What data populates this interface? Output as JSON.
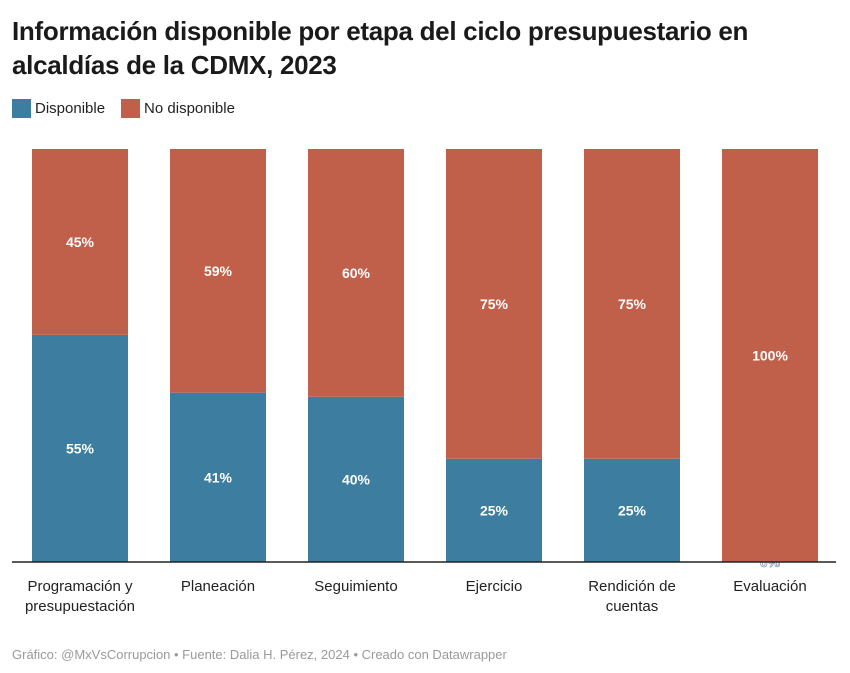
{
  "title": "Información disponible por etapa del ciclo presupuestario en alcaldías de la CDMX, 2023",
  "footer": "Gráfico: @MxVsCorrupcion • Fuente: Dalia H. Pérez, 2024 • Creado con Datawrapper",
  "chart_data": {
    "type": "bar",
    "stacked": true,
    "orientation": "vertical",
    "title": "Información disponible por etapa del ciclo presupuestario en alcaldías de la CDMX, 2023",
    "categories": [
      "Programación y presupuestación",
      "Planeación",
      "Seguimiento",
      "Ejercicio",
      "Rendición de cuentas",
      "Evaluación"
    ],
    "series": [
      {
        "name": "Disponible",
        "color": "#3d7ea0",
        "values": [
          55,
          41,
          40,
          25,
          25,
          0
        ]
      },
      {
        "name": "No disponible",
        "color": "#c1604a",
        "values": [
          45,
          59,
          60,
          75,
          75,
          100
        ]
      }
    ],
    "value_labels": [
      [
        "55%",
        "41%",
        "40%",
        "25%",
        "25%",
        "0%"
      ],
      [
        "45%",
        "59%",
        "60%",
        "75%",
        "75%",
        "100%"
      ]
    ],
    "ylim": [
      0,
      100
    ],
    "legend_position": "top-left",
    "grid": false
  }
}
